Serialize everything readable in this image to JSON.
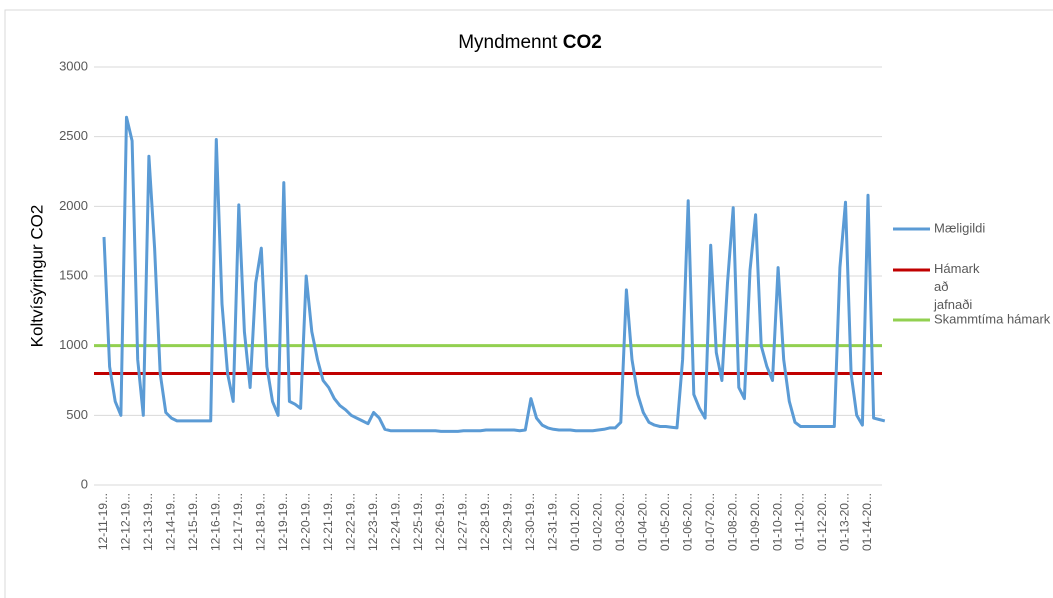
{
  "chart_data": {
    "type": "line",
    "title": "Myndmennt CO2",
    "y_label": "Koltvísýringur CO2",
    "categories": [
      "12-11-19...",
      null,
      null,
      null,
      "12-12-19...",
      null,
      null,
      null,
      "12-13-19...",
      null,
      null,
      null,
      "12-14-19...",
      null,
      null,
      null,
      "12-15-19...",
      null,
      null,
      null,
      "12-16-19...",
      null,
      null,
      null,
      "12-17-19...",
      null,
      null,
      null,
      "12-18-19...",
      null,
      null,
      null,
      "12-19-19...",
      null,
      null,
      null,
      "12-20-19...",
      null,
      null,
      null,
      "12-21-19...",
      null,
      null,
      null,
      "12-22-19...",
      null,
      null,
      null,
      "12-23-19...",
      null,
      null,
      null,
      "12-24-19...",
      null,
      null,
      null,
      "12-25-19...",
      null,
      null,
      null,
      "12-26-19...",
      null,
      null,
      null,
      "12-27-19...",
      null,
      null,
      null,
      "12-28-19...",
      null,
      null,
      null,
      "12-29-19...",
      null,
      null,
      null,
      "12-30-19...",
      null,
      null,
      null,
      "12-31-19...",
      null,
      null,
      null,
      "01-01-20...",
      null,
      null,
      null,
      "01-02-20...",
      null,
      null,
      null,
      "01-03-20...",
      null,
      null,
      null,
      "01-04-20...",
      null,
      null,
      null,
      "01-05-20...",
      null,
      null,
      null,
      "01-06-20...",
      null,
      null,
      null,
      "01-07-20...",
      null,
      null,
      null,
      "01-08-20...",
      null,
      null,
      null,
      "01-09-20...",
      null,
      null,
      null,
      "01-10-20...",
      null,
      null,
      null,
      "01-11-20...",
      null,
      null,
      null,
      "01-12-20...",
      null,
      null,
      null,
      "01-13-20...",
      null,
      null,
      null,
      "01-14-20...",
      null,
      null,
      null
    ],
    "series": [
      {
        "name": "Mæligildi",
        "color": "#5b9bd5",
        "values": [
          1780,
          850,
          600,
          500,
          2640,
          2470,
          900,
          500,
          2360,
          1700,
          800,
          520,
          480,
          460,
          460,
          460,
          460,
          460,
          460,
          460,
          2480,
          1300,
          800,
          600,
          2010,
          1100,
          700,
          1450,
          1700,
          850,
          600,
          500,
          2170,
          600,
          580,
          550,
          1500,
          1100,
          900,
          750,
          700,
          620,
          570,
          540,
          500,
          480,
          460,
          440,
          520,
          480,
          400,
          390,
          390,
          390,
          390,
          390,
          390,
          390,
          390,
          390,
          385,
          385,
          385,
          385,
          390,
          390,
          390,
          390,
          395,
          395,
          395,
          395,
          395,
          395,
          390,
          395,
          620,
          480,
          430,
          410,
          400,
          395,
          395,
          395,
          390,
          390,
          390,
          390,
          395,
          400,
          410,
          410,
          450,
          1400,
          900,
          650,
          520,
          450,
          430,
          420,
          420,
          415,
          410,
          900,
          2040,
          650,
          550,
          480,
          1720,
          950,
          750,
          1450,
          1990,
          700,
          620,
          1540,
          1940,
          1000,
          850,
          750,
          1560,
          900,
          600,
          450,
          420,
          420,
          420,
          420,
          420,
          420,
          420,
          1560,
          2030,
          800,
          500,
          430,
          2080,
          480,
          470,
          460
        ]
      }
    ],
    "reference_lines": [
      {
        "name": "Hámark að jafnaði",
        "color": "#c00000",
        "value": 800
      },
      {
        "name": "Skammtíma hámark",
        "color": "#92d050",
        "value": 1000
      }
    ],
    "ylim": [
      0,
      3000
    ],
    "yticks": [
      0,
      500,
      1000,
      1500,
      2000,
      2500,
      3000
    ],
    "grid": true,
    "legend": "right"
  }
}
